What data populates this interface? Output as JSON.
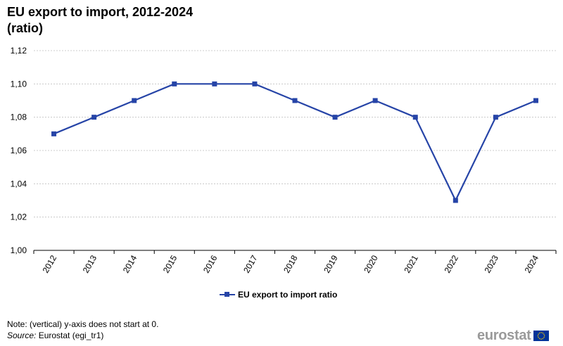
{
  "title": {
    "line1": "EU export to import, 2012-2024",
    "line2": "(ratio)"
  },
  "chart_data": {
    "type": "line",
    "categories": [
      "2012",
      "2013",
      "2014",
      "2015",
      "2016",
      "2017",
      "2018",
      "2019",
      "2020",
      "2021",
      "2022",
      "2023",
      "2024"
    ],
    "series": [
      {
        "name": "EU export to import ratio",
        "values": [
          1.07,
          1.08,
          1.09,
          1.1,
          1.1,
          1.1,
          1.09,
          1.08,
          1.09,
          1.08,
          1.03,
          1.08,
          1.09
        ],
        "color": "#2644a7"
      }
    ],
    "ylim": [
      1.0,
      1.12
    ],
    "yticks": [
      1.0,
      1.02,
      1.04,
      1.06,
      1.08,
      1.1,
      1.12
    ],
    "ytick_labels": [
      "1,00",
      "1,02",
      "1,04",
      "1,06",
      "1,08",
      "1,10",
      "1,12"
    ],
    "grid": true,
    "legend_position": "bottom-center",
    "xlabel": "",
    "ylabel": ""
  },
  "legend": {
    "label": "EU export to import ratio"
  },
  "footer": {
    "note": "Note: (vertical) y-axis does not start at 0.",
    "source_prefix": "Source:",
    "source_text": " Eurostat (egi_tr1)",
    "logo_text": "eurostat"
  },
  "colors": {
    "series": "#2644a7",
    "grid": "#bfbfbf",
    "logo": "#9a9a9a",
    "eu_flag": "#003399",
    "eu_stars": "#ffcc00"
  }
}
